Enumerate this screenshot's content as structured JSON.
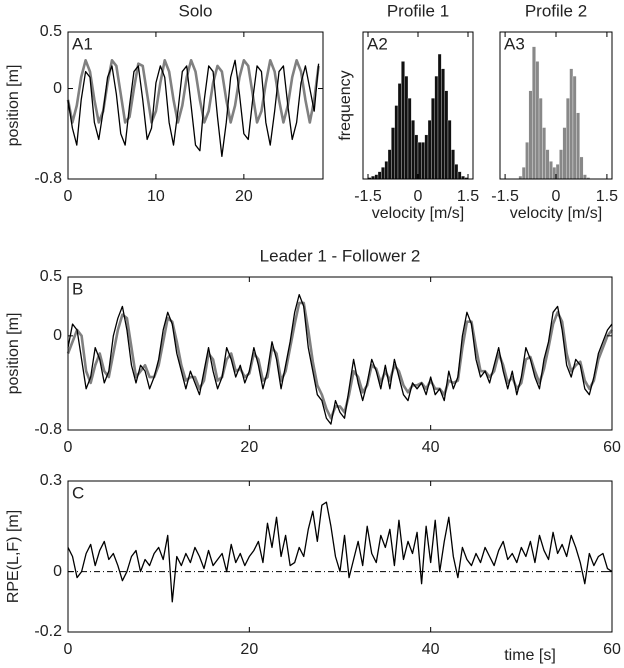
{
  "chart_data": [
    {
      "type": "line",
      "title": "Solo",
      "panel_label": "A1",
      "ylabel": "position [m]",
      "xlim": [
        0,
        29
      ],
      "xticks": [
        0,
        10,
        20
      ],
      "ylim": [
        -0.8,
        0.5
      ],
      "yticks": [
        0.5,
        0,
        -0.8
      ],
      "x": [
        0,
        0.5,
        1,
        1.5,
        2,
        2.5,
        3,
        3.5,
        4,
        4.5,
        5,
        5.5,
        6,
        6.5,
        7,
        7.5,
        8,
        8.5,
        9,
        9.5,
        10,
        10.5,
        11,
        11.5,
        12,
        12.5,
        13,
        13.5,
        14,
        14.5,
        15,
        15.5,
        16,
        16.5,
        17,
        17.5,
        18,
        18.5,
        19,
        19.5,
        20,
        20.5,
        21,
        21.5,
        22,
        22.5,
        23,
        23.5,
        24,
        24.5,
        25,
        25.5,
        26,
        26.5,
        27,
        27.5,
        28,
        28.5
      ],
      "series": [
        {
          "color": "#808080",
          "values": [
            -0.1,
            -0.3,
            -0.15,
            0.1,
            0.25,
            0.15,
            -0.1,
            -0.3,
            -0.2,
            0.05,
            0.25,
            0.2,
            -0.05,
            -0.3,
            -0.25,
            0.0,
            0.22,
            0.2,
            -0.05,
            -0.3,
            -0.2,
            0.05,
            0.25,
            0.15,
            -0.1,
            -0.3,
            -0.15,
            0.1,
            0.25,
            0.15,
            -0.1,
            -0.3,
            -0.2,
            0.05,
            0.2,
            0.15,
            -0.1,
            -0.3,
            -0.15,
            0.1,
            0.25,
            0.2,
            -0.05,
            -0.3,
            -0.2,
            0.05,
            0.25,
            0.15,
            -0.1,
            -0.3,
            -0.15,
            0.1,
            0.25,
            0.15,
            -0.1,
            -0.3,
            -0.1,
            0.2
          ]
        },
        {
          "color": "#000000",
          "values": [
            -0.1,
            -0.35,
            -0.5,
            -0.1,
            0.15,
            0.1,
            -0.3,
            -0.45,
            -0.2,
            0.1,
            0.2,
            -0.05,
            -0.4,
            -0.5,
            -0.15,
            0.15,
            0.2,
            -0.1,
            -0.45,
            -0.35,
            0.05,
            0.2,
            0.1,
            -0.3,
            -0.5,
            -0.2,
            0.15,
            0.2,
            -0.15,
            -0.5,
            -0.55,
            -0.1,
            0.2,
            0.15,
            -0.25,
            -0.6,
            -0.3,
            0.1,
            0.25,
            -0.05,
            -0.4,
            -0.45,
            -0.1,
            0.2,
            0.15,
            -0.3,
            -0.5,
            -0.2,
            0.15,
            0.2,
            -0.15,
            -0.45,
            -0.3,
            0.05,
            0.2,
            0.0,
            -0.2,
            0.22
          ]
        }
      ]
    },
    {
      "type": "histogram",
      "title": "Profile 1",
      "panel_label": "A2",
      "ylabel": "frequency",
      "xlabel": "velocity [m/s]",
      "xlim": [
        -1.65,
        1.65
      ],
      "xticks": [
        -1.5,
        0,
        1.5
      ],
      "ylim": [
        0,
        100
      ],
      "color": "#111111",
      "bins": [
        -1.5,
        -1.4,
        -1.3,
        -1.2,
        -1.1,
        -1,
        -0.9,
        -0.8,
        -0.7,
        -0.6,
        -0.5,
        -0.4,
        -0.3,
        -0.2,
        -0.1,
        0,
        0.1,
        0.2,
        0.3,
        0.4,
        0.5,
        0.6,
        0.7,
        0.8,
        0.9,
        1,
        1.1,
        1.2,
        1.3,
        1.4,
        1.5
      ],
      "values": [
        1,
        2,
        3,
        5,
        8,
        12,
        20,
        35,
        50,
        65,
        80,
        70,
        55,
        40,
        30,
        25,
        25,
        30,
        40,
        55,
        70,
        85,
        75,
        60,
        40,
        20,
        10,
        5,
        2,
        1
      ]
    },
    {
      "type": "histogram",
      "title": "Profile 2",
      "panel_label": "A3",
      "xlabel": "velocity [m/s]",
      "xlim": [
        -1.65,
        1.65
      ],
      "xticks": [
        -1.5,
        0,
        1.5
      ],
      "ylim": [
        0,
        100
      ],
      "color": "#888888",
      "bins": [
        -1.5,
        -1.4,
        -1.3,
        -1.2,
        -1.1,
        -1,
        -0.9,
        -0.8,
        -0.7,
        -0.6,
        -0.5,
        -0.4,
        -0.3,
        -0.2,
        -0.1,
        0,
        0.1,
        0.2,
        0.3,
        0.4,
        0.5,
        0.6,
        0.7,
        0.8,
        0.9,
        1,
        1.1,
        1.2,
        1.3,
        1.4,
        1.5
      ],
      "values": [
        0,
        0,
        0,
        0,
        2,
        8,
        25,
        60,
        90,
        80,
        55,
        35,
        20,
        12,
        8,
        10,
        20,
        35,
        55,
        75,
        70,
        45,
        15,
        3,
        1,
        0,
        0,
        0,
        0,
        0
      ]
    },
    {
      "type": "line",
      "title": "Leader 1 - Follower 2",
      "panel_label": "B",
      "ylabel": "position [m]",
      "xlim": [
        0,
        60
      ],
      "xticks": [
        0,
        20,
        40,
        60
      ],
      "ylim": [
        -0.8,
        0.5
      ],
      "yticks": [
        0.5,
        0,
        -0.8
      ],
      "x": [
        0,
        0.5,
        1,
        1.5,
        2,
        2.5,
        3,
        3.5,
        4,
        4.5,
        5,
        5.5,
        6,
        6.5,
        7,
        7.5,
        8,
        8.5,
        9,
        9.5,
        10,
        10.5,
        11,
        11.5,
        12,
        12.5,
        13,
        13.5,
        14,
        14.5,
        15,
        15.5,
        16,
        16.5,
        17,
        17.5,
        18,
        18.5,
        19,
        19.5,
        20,
        20.5,
        21,
        21.5,
        22,
        22.5,
        23,
        23.5,
        24,
        24.5,
        25,
        25.5,
        26,
        26.5,
        27,
        27.5,
        28,
        28.5,
        29,
        29.5,
        30,
        30.5,
        31,
        31.5,
        32,
        32.5,
        33,
        33.5,
        34,
        34.5,
        35,
        35.5,
        36,
        36.5,
        37,
        37.5,
        38,
        38.5,
        39,
        39.5,
        40,
        40.5,
        41,
        41.5,
        42,
        42.5,
        43,
        43.5,
        44,
        44.5,
        45,
        45.5,
        46,
        46.5,
        47,
        47.5,
        48,
        48.5,
        49,
        49.5,
        50,
        50.5,
        51,
        51.5,
        52,
        52.5,
        53,
        53.5,
        54,
        54.5,
        55,
        55.5,
        56,
        56.5,
        57,
        57.5,
        58,
        58.5,
        59,
        59.5,
        60
      ],
      "series": [
        {
          "color": "#808080",
          "values": [
            -0.15,
            -0.05,
            0.05,
            0.0,
            -0.3,
            -0.4,
            -0.25,
            -0.15,
            -0.3,
            -0.35,
            -0.15,
            0.05,
            0.18,
            0.15,
            -0.1,
            -0.35,
            -0.3,
            -0.25,
            -0.35,
            -0.35,
            -0.25,
            -0.05,
            0.15,
            0.12,
            -0.05,
            -0.25,
            -0.38,
            -0.35,
            -0.35,
            -0.45,
            -0.38,
            -0.15,
            -0.2,
            -0.38,
            -0.35,
            -0.2,
            -0.15,
            -0.3,
            -0.28,
            -0.35,
            -0.32,
            -0.15,
            -0.2,
            -0.38,
            -0.35,
            -0.1,
            -0.15,
            -0.38,
            -0.3,
            -0.1,
            0.1,
            0.28,
            0.28,
            0.05,
            -0.22,
            -0.42,
            -0.5,
            -0.62,
            -0.7,
            -0.6,
            -0.6,
            -0.65,
            -0.5,
            -0.3,
            -0.35,
            -0.48,
            -0.42,
            -0.25,
            -0.28,
            -0.4,
            -0.3,
            -0.38,
            -0.25,
            -0.3,
            -0.42,
            -0.48,
            -0.42,
            -0.42,
            -0.4,
            -0.45,
            -0.38,
            -0.45,
            -0.45,
            -0.5,
            -0.38,
            -0.4,
            -0.38,
            -0.1,
            0.12,
            0.12,
            -0.1,
            -0.3,
            -0.3,
            -0.35,
            -0.3,
            -0.15,
            -0.25,
            -0.4,
            -0.35,
            -0.45,
            -0.4,
            -0.2,
            -0.18,
            -0.3,
            -0.4,
            -0.28,
            -0.1,
            0.1,
            0.2,
            0.12,
            -0.15,
            -0.3,
            -0.25,
            -0.22,
            -0.38,
            -0.45,
            -0.38,
            -0.2,
            -0.1,
            0.0,
            0.05
          ]
        },
        {
          "color": "#000000",
          "values": [
            -0.1,
            0.1,
            0.05,
            -0.2,
            -0.45,
            -0.35,
            -0.1,
            -0.2,
            -0.4,
            -0.3,
            0.0,
            0.15,
            0.25,
            0.05,
            -0.25,
            -0.4,
            -0.25,
            -0.3,
            -0.45,
            -0.35,
            -0.2,
            0.05,
            0.2,
            0.1,
            -0.15,
            -0.3,
            -0.45,
            -0.3,
            -0.4,
            -0.5,
            -0.3,
            -0.1,
            -0.3,
            -0.45,
            -0.35,
            -0.1,
            -0.2,
            -0.35,
            -0.25,
            -0.4,
            -0.3,
            -0.1,
            -0.25,
            -0.45,
            -0.3,
            -0.05,
            -0.2,
            -0.45,
            -0.25,
            -0.05,
            0.2,
            0.35,
            0.25,
            -0.1,
            -0.3,
            -0.5,
            -0.55,
            -0.7,
            -0.75,
            -0.55,
            -0.65,
            -0.7,
            -0.45,
            -0.2,
            -0.4,
            -0.55,
            -0.4,
            -0.2,
            -0.3,
            -0.45,
            -0.25,
            -0.45,
            -0.2,
            -0.35,
            -0.5,
            -0.55,
            -0.4,
            -0.45,
            -0.4,
            -0.5,
            -0.35,
            -0.5,
            -0.45,
            -0.55,
            -0.3,
            -0.45,
            -0.35,
            0.0,
            0.2,
            0.1,
            -0.2,
            -0.35,
            -0.3,
            -0.4,
            -0.25,
            -0.1,
            -0.3,
            -0.45,
            -0.3,
            -0.5,
            -0.35,
            -0.1,
            -0.2,
            -0.35,
            -0.45,
            -0.2,
            -0.05,
            0.2,
            0.25,
            0.05,
            -0.25,
            -0.35,
            -0.2,
            -0.25,
            -0.45,
            -0.5,
            -0.35,
            -0.15,
            -0.05,
            0.05,
            0.1
          ]
        }
      ]
    },
    {
      "type": "line",
      "panel_label": "C",
      "ylabel": "RPE(L,F) [m]",
      "xlabel": "time [s]",
      "xlim": [
        0,
        60
      ],
      "xticks": [
        0,
        20,
        40,
        60
      ],
      "ylim": [
        -0.2,
        0.3
      ],
      "yticks": [
        0.3,
        0,
        -0.2
      ],
      "reference_line": 0,
      "x": [
        0,
        0.5,
        1,
        1.5,
        2,
        2.5,
        3,
        3.5,
        4,
        4.5,
        5,
        5.5,
        6,
        6.5,
        7,
        7.5,
        8,
        8.5,
        9,
        9.5,
        10,
        10.5,
        11,
        11.5,
        12,
        12.5,
        13,
        13.5,
        14,
        14.5,
        15,
        15.5,
        16,
        16.5,
        17,
        17.5,
        18,
        18.5,
        19,
        19.5,
        20,
        20.5,
        21,
        21.5,
        22,
        22.5,
        23,
        23.5,
        24,
        24.5,
        25,
        25.5,
        26,
        26.5,
        27,
        27.5,
        28,
        28.5,
        29,
        29.5,
        30,
        30.5,
        31,
        31.5,
        32,
        32.5,
        33,
        33.5,
        34,
        34.5,
        35,
        35.5,
        36,
        36.5,
        37,
        37.5,
        38,
        38.5,
        39,
        39.5,
        40,
        40.5,
        41,
        41.5,
        42,
        42.5,
        43,
        43.5,
        44,
        44.5,
        45,
        45.5,
        46,
        46.5,
        47,
        47.5,
        48,
        48.5,
        49,
        49.5,
        50,
        50.5,
        51,
        51.5,
        52,
        52.5,
        53,
        53.5,
        54,
        54.5,
        55,
        55.5,
        56,
        56.5,
        57,
        57.5,
        58,
        58.5,
        59,
        59.5,
        60
      ],
      "series": [
        {
          "color": "#000000",
          "values": [
            0.08,
            0.05,
            -0.02,
            0.0,
            0.06,
            0.09,
            0.02,
            0.07,
            0.1,
            0.04,
            0.06,
            0.02,
            -0.03,
            0.0,
            0.05,
            0.07,
            0.0,
            0.04,
            0.02,
            0.06,
            0.08,
            0.04,
            0.12,
            -0.1,
            0.05,
            0.02,
            0.06,
            0.03,
            0.08,
            0.05,
            0.01,
            0.07,
            0.02,
            0.04,
            0.06,
            0.0,
            0.09,
            0.03,
            0.06,
            0.02,
            0.05,
            0.07,
            0.1,
            0.03,
            0.16,
            0.08,
            0.18,
            0.05,
            0.12,
            0.02,
            0.03,
            0.08,
            0.05,
            0.14,
            0.2,
            0.1,
            0.22,
            0.23,
            0.15,
            0.05,
            0.0,
            0.12,
            -0.02,
            0.04,
            0.1,
            0.02,
            0.15,
            0.06,
            0.03,
            0.12,
            0.08,
            0.14,
            0.02,
            0.17,
            0.04,
            0.1,
            0.06,
            0.13,
            -0.04,
            0.15,
            0.03,
            0.17,
            0.0,
            0.1,
            0.18,
            0.05,
            -0.02,
            0.08,
            0.04,
            0.02,
            0.06,
            0.03,
            0.08,
            0.05,
            0.02,
            0.07,
            0.1,
            0.04,
            0.06,
            0.03,
            0.08,
            0.05,
            0.1,
            0.03,
            0.12,
            0.07,
            0.04,
            0.13,
            0.06,
            0.09,
            0.05,
            0.12,
            0.08,
            0.03,
            -0.04,
            0.06,
            0.02,
            0.05,
            0.06,
            0.01,
            0.0
          ]
        }
      ]
    }
  ]
}
